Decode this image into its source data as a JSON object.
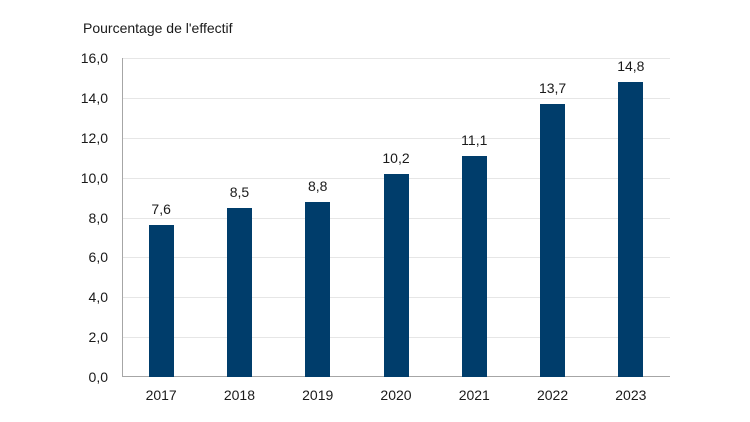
{
  "chart_data": {
    "type": "bar",
    "title": "",
    "ylabel": "Pourcentage de l'effectif",
    "xlabel": "",
    "categories": [
      "2017",
      "2018",
      "2019",
      "2020",
      "2021",
      "2022",
      "2023"
    ],
    "values": [
      7.6,
      8.5,
      8.8,
      10.2,
      11.1,
      13.7,
      14.8
    ],
    "value_labels": [
      "7,6",
      "8,5",
      "8,8",
      "10,2",
      "11,1",
      "13,7",
      "14,8"
    ],
    "ylim": [
      0,
      16
    ],
    "yticks": [
      "0,0",
      "2,0",
      "4,0",
      "6,0",
      "8,0",
      "10,0",
      "12,0",
      "14,0",
      "16,0"
    ],
    "grid": true,
    "legend": null,
    "bar_color": "#003d6b"
  }
}
